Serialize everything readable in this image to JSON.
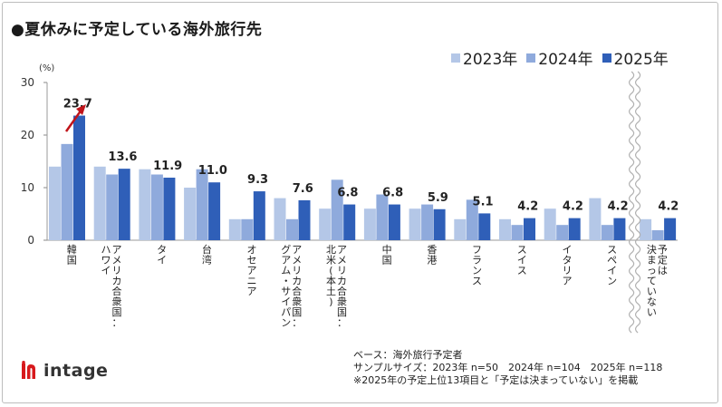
{
  "title": "●夏休みに予定している海外旅行先",
  "legend": [
    {
      "label": "2023年",
      "color": "#b4c7e7"
    },
    {
      "label": "2024年",
      "color": "#8faadc"
    },
    {
      "label": "2025年",
      "color": "#2f5fb8"
    }
  ],
  "unit_label": "(%)",
  "chart_data": {
    "type": "bar",
    "title": "夏休みに予定している海外旅行先",
    "ylabel": "(%)",
    "ylim": [
      0,
      30
    ],
    "yticks": [
      0,
      10,
      20,
      30
    ],
    "series": [
      {
        "name": "2023年",
        "values": [
          14.0,
          14.0,
          13.5,
          10.0,
          4.0,
          8.0,
          6.0,
          6.0,
          6.0,
          4.0,
          4.0,
          6.0,
          8.0,
          4.0
        ]
      },
      {
        "name": "2024年",
        "values": [
          18.3,
          12.5,
          12.5,
          13.5,
          4.0,
          4.0,
          11.5,
          8.7,
          6.8,
          7.7,
          2.9,
          2.9,
          2.9,
          1.9
        ]
      },
      {
        "name": "2025年",
        "values": [
          23.7,
          13.6,
          11.9,
          11.0,
          9.3,
          7.6,
          6.8,
          6.8,
          5.9,
          5.1,
          4.2,
          4.2,
          4.2,
          4.2
        ]
      }
    ],
    "categories": [
      "韓国",
      "アメリカ合衆国：ハワイ",
      "タイ",
      "台湾",
      "オセアニア",
      "アメリカ合衆国：グアム・サイパン",
      "アメリカ合衆国：北米(本土)",
      "中国",
      "香港",
      "フランス",
      "スイス",
      "イタリア",
      "スペイン",
      "予定は決まっていない"
    ],
    "category_lines": [
      [
        "韓国"
      ],
      [
        "アメリカ合衆国：",
        "ハワイ"
      ],
      [
        "タイ"
      ],
      [
        "台湾"
      ],
      [
        "オセアニア"
      ],
      [
        "アメリカ合衆国：",
        "グアム・サイパン"
      ],
      [
        "アメリカ合衆国：",
        "北米(本土)"
      ],
      [
        "中国"
      ],
      [
        "香港"
      ],
      [
        "フランス"
      ],
      [
        "スイス"
      ],
      [
        "イタリア"
      ],
      [
        "スペイン"
      ],
      [
        "予定は",
        "決まっていない"
      ]
    ],
    "data_labels": [
      "23.7",
      "13.6",
      "11.9",
      "11.0",
      "9.3",
      "7.6",
      "6.8",
      "6.8",
      "5.9",
      "5.1",
      "4.2",
      "4.2",
      "4.2",
      "4.2"
    ],
    "annotations": [
      "increase-arrow on 韓国 2025年"
    ],
    "axis_break_before": "予定は決まっていない"
  },
  "footnote": {
    "line1": "ベース：海外旅行予定者",
    "line2": "サンプルサイズ：2023年 n=50　2024年 n=104　2025年 n=118",
    "line3": "※2025年の予定上位13項目と「予定は決まっていない」を掲載"
  },
  "logo": {
    "text": "intage",
    "color": "#d7191c"
  }
}
